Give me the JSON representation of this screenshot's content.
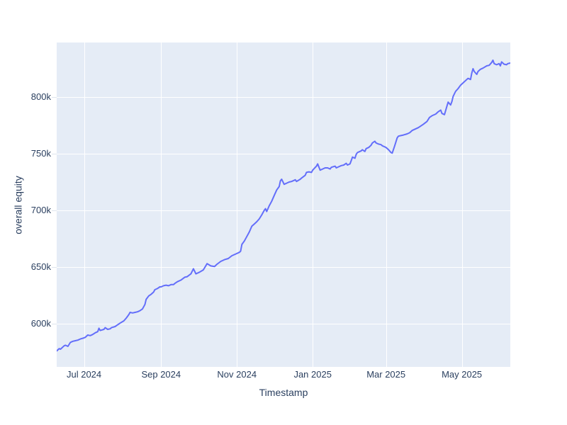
{
  "chart_data": {
    "type": "line",
    "title": "",
    "xlabel": "Timestamp",
    "ylabel": "overall equity",
    "grid": "on",
    "legend_position": "none",
    "xlim": [
      "2024-06-09",
      "2025-06-09"
    ],
    "ylim": [
      561875,
      848125
    ],
    "x_ticks": [
      {
        "date": "2024-07-01",
        "label": "Jul 2024"
      },
      {
        "date": "2024-09-01",
        "label": "Sep 2024"
      },
      {
        "date": "2024-11-01",
        "label": "Nov 2024"
      },
      {
        "date": "2025-01-01",
        "label": "Jan 2025"
      },
      {
        "date": "2025-03-01",
        "label": "Mar 2025"
      },
      {
        "date": "2025-05-01",
        "label": "May 2025"
      }
    ],
    "y_ticks": [
      {
        "value": 600000,
        "label": "600k"
      },
      {
        "value": 650000,
        "label": "650k"
      },
      {
        "value": 700000,
        "label": "700k"
      },
      {
        "value": 750000,
        "label": "750k"
      },
      {
        "value": 800000,
        "label": "800k"
      }
    ],
    "colors": {
      "line": "#636efa",
      "plot_bg": "#e5ecf6",
      "grid": "#ffffff",
      "text": "#2a3f5f",
      "outer_bg": "#ffffff"
    },
    "series": [
      {
        "name": "overall equity",
        "points": [
          [
            "2024-06-09",
            576000
          ],
          [
            "2024-06-11",
            578000
          ],
          [
            "2024-06-12",
            577500
          ],
          [
            "2024-06-15",
            580500
          ],
          [
            "2024-06-16",
            581000
          ],
          [
            "2024-06-18",
            580000
          ],
          [
            "2024-06-20",
            583500
          ],
          [
            "2024-06-22",
            584500
          ],
          [
            "2024-06-24",
            585000
          ],
          [
            "2024-06-26",
            585500
          ],
          [
            "2024-06-28",
            586500
          ],
          [
            "2024-07-01",
            587500
          ],
          [
            "2024-07-02",
            588000
          ],
          [
            "2024-07-04",
            590000
          ],
          [
            "2024-07-06",
            589500
          ],
          [
            "2024-07-08",
            590500
          ],
          [
            "2024-07-10",
            592000
          ],
          [
            "2024-07-12",
            593000
          ],
          [
            "2024-07-13",
            596000
          ],
          [
            "2024-07-14",
            594000
          ],
          [
            "2024-07-17",
            595000
          ],
          [
            "2024-07-18",
            596500
          ],
          [
            "2024-07-20",
            595000
          ],
          [
            "2024-07-22",
            595500
          ],
          [
            "2024-07-23",
            596500
          ],
          [
            "2024-07-26",
            597500
          ],
          [
            "2024-07-28",
            599000
          ],
          [
            "2024-07-30",
            600500
          ],
          [
            "2024-08-02",
            602500
          ],
          [
            "2024-08-04",
            605000
          ],
          [
            "2024-08-06",
            608000
          ],
          [
            "2024-08-07",
            610000
          ],
          [
            "2024-08-09",
            609500
          ],
          [
            "2024-08-11",
            610000
          ],
          [
            "2024-08-13",
            610500
          ],
          [
            "2024-08-15",
            611500
          ],
          [
            "2024-08-17",
            613000
          ],
          [
            "2024-08-19",
            617000
          ],
          [
            "2024-08-20",
            621500
          ],
          [
            "2024-08-22",
            624500
          ],
          [
            "2024-08-24",
            626000
          ],
          [
            "2024-08-26",
            628000
          ],
          [
            "2024-08-27",
            630000
          ],
          [
            "2024-08-29",
            631000
          ],
          [
            "2024-08-31",
            632500
          ],
          [
            "2024-09-01",
            632500
          ],
          [
            "2024-09-03",
            633500
          ],
          [
            "2024-09-05",
            634000
          ],
          [
            "2024-09-07",
            633500
          ],
          [
            "2024-09-09",
            634500
          ],
          [
            "2024-09-11",
            634500
          ],
          [
            "2024-09-12",
            635500
          ],
          [
            "2024-09-14",
            637000
          ],
          [
            "2024-09-17",
            638500
          ],
          [
            "2024-09-20",
            641000
          ],
          [
            "2024-09-22",
            641500
          ],
          [
            "2024-09-25",
            644000
          ],
          [
            "2024-09-27",
            648500
          ],
          [
            "2024-09-29",
            644000
          ],
          [
            "2024-10-02",
            645500
          ],
          [
            "2024-10-05",
            647500
          ],
          [
            "2024-10-08",
            653000
          ],
          [
            "2024-10-11",
            651000
          ],
          [
            "2024-10-14",
            650500
          ],
          [
            "2024-10-16",
            652500
          ],
          [
            "2024-10-19",
            655000
          ],
          [
            "2024-10-22",
            656500
          ],
          [
            "2024-10-25",
            657500
          ],
          [
            "2024-10-28",
            660000
          ],
          [
            "2024-10-31",
            661500
          ],
          [
            "2024-11-03",
            663000
          ],
          [
            "2024-11-04",
            664000
          ],
          [
            "2024-11-05",
            670000
          ],
          [
            "2024-11-07",
            673000
          ],
          [
            "2024-11-09",
            677000
          ],
          [
            "2024-11-11",
            681000
          ],
          [
            "2024-11-13",
            686000
          ],
          [
            "2024-11-15",
            688000
          ],
          [
            "2024-11-17",
            690000
          ],
          [
            "2024-11-19",
            692500
          ],
          [
            "2024-11-21",
            696000
          ],
          [
            "2024-11-23",
            700000
          ],
          [
            "2024-11-24",
            701500
          ],
          [
            "2024-11-25",
            699000
          ],
          [
            "2024-11-27",
            704000
          ],
          [
            "2024-11-29",
            708000
          ],
          [
            "2024-12-01",
            713000
          ],
          [
            "2024-12-03",
            718000
          ],
          [
            "2024-12-05",
            721000
          ],
          [
            "2024-12-06",
            726000
          ],
          [
            "2024-12-07",
            727500
          ],
          [
            "2024-12-09",
            723000
          ],
          [
            "2024-12-11",
            724000
          ],
          [
            "2024-12-13",
            725000
          ],
          [
            "2024-12-15",
            725500
          ],
          [
            "2024-12-18",
            727000
          ],
          [
            "2024-12-19",
            725500
          ],
          [
            "2024-12-22",
            727500
          ],
          [
            "2024-12-23",
            728500
          ],
          [
            "2024-12-26",
            731000
          ],
          [
            "2024-12-27",
            733500
          ],
          [
            "2024-12-29",
            734000
          ],
          [
            "2024-12-31",
            733500
          ],
          [
            "2025-01-01",
            735500
          ],
          [
            "2025-01-04",
            739000
          ],
          [
            "2025-01-05",
            741000
          ],
          [
            "2025-01-07",
            735500
          ],
          [
            "2025-01-09",
            736500
          ],
          [
            "2025-01-11",
            737500
          ],
          [
            "2025-01-13",
            737500
          ],
          [
            "2025-01-15",
            736500
          ],
          [
            "2025-01-16",
            738000
          ],
          [
            "2025-01-19",
            739000
          ],
          [
            "2025-01-20",
            737500
          ],
          [
            "2025-01-22",
            738500
          ],
          [
            "2025-01-24",
            739500
          ],
          [
            "2025-01-26",
            740000
          ],
          [
            "2025-01-28",
            741500
          ],
          [
            "2025-01-29",
            740000
          ],
          [
            "2025-01-31",
            741000
          ],
          [
            "2025-02-01",
            744000
          ],
          [
            "2025-02-02",
            747000
          ],
          [
            "2025-02-04",
            746000
          ],
          [
            "2025-02-05",
            749500
          ],
          [
            "2025-02-06",
            751000
          ],
          [
            "2025-02-08",
            752000
          ],
          [
            "2025-02-09",
            752500
          ],
          [
            "2025-02-10",
            753500
          ],
          [
            "2025-02-12",
            752000
          ],
          [
            "2025-02-13",
            754500
          ],
          [
            "2025-02-15",
            755500
          ],
          [
            "2025-02-17",
            757500
          ],
          [
            "2025-02-18",
            759500
          ],
          [
            "2025-02-20",
            761000
          ],
          [
            "2025-02-21",
            759500
          ],
          [
            "2025-02-23",
            758500
          ],
          [
            "2025-02-25",
            758000
          ],
          [
            "2025-02-26",
            757000
          ],
          [
            "2025-02-28",
            756000
          ],
          [
            "2025-03-01",
            755500
          ],
          [
            "2025-03-03",
            753500
          ],
          [
            "2025-03-05",
            751000
          ],
          [
            "2025-03-06",
            750500
          ],
          [
            "2025-03-08",
            757000
          ],
          [
            "2025-03-10",
            764000
          ],
          [
            "2025-03-11",
            765500
          ],
          [
            "2025-03-13",
            766000
          ],
          [
            "2025-03-15",
            766500
          ],
          [
            "2025-03-18",
            767500
          ],
          [
            "2025-03-20",
            768500
          ],
          [
            "2025-03-22",
            770500
          ],
          [
            "2025-03-25",
            772000
          ],
          [
            "2025-03-27",
            773000
          ],
          [
            "2025-03-29",
            774500
          ],
          [
            "2025-03-31",
            776000
          ],
          [
            "2025-04-03",
            778500
          ],
          [
            "2025-04-05",
            782000
          ],
          [
            "2025-04-07",
            783500
          ],
          [
            "2025-04-10",
            785000
          ],
          [
            "2025-04-12",
            787000
          ],
          [
            "2025-04-14",
            788500
          ],
          [
            "2025-04-15",
            785500
          ],
          [
            "2025-04-17",
            784500
          ],
          [
            "2025-04-19",
            792000
          ],
          [
            "2025-04-20",
            795500
          ],
          [
            "2025-04-22",
            793000
          ],
          [
            "2025-04-23",
            796000
          ],
          [
            "2025-04-24",
            800500
          ],
          [
            "2025-04-26",
            805000
          ],
          [
            "2025-04-28",
            807500
          ],
          [
            "2025-04-30",
            810500
          ],
          [
            "2025-05-02",
            812500
          ],
          [
            "2025-05-05",
            815500
          ],
          [
            "2025-05-06",
            816500
          ],
          [
            "2025-05-08",
            815500
          ],
          [
            "2025-05-09",
            821000
          ],
          [
            "2025-05-10",
            825000
          ],
          [
            "2025-05-11",
            822500
          ],
          [
            "2025-05-13",
            820000
          ],
          [
            "2025-05-14",
            822500
          ],
          [
            "2025-05-16",
            824500
          ],
          [
            "2025-05-18",
            825500
          ],
          [
            "2025-05-21",
            827500
          ],
          [
            "2025-05-23",
            828000
          ],
          [
            "2025-05-25",
            830500
          ],
          [
            "2025-05-26",
            832500
          ],
          [
            "2025-05-27",
            829500
          ],
          [
            "2025-05-29",
            828500
          ],
          [
            "2025-05-31",
            829500
          ],
          [
            "2025-06-01",
            827500
          ],
          [
            "2025-06-02",
            831000
          ],
          [
            "2025-06-04",
            829000
          ],
          [
            "2025-06-06",
            828500
          ],
          [
            "2025-06-07",
            829500
          ],
          [
            "2025-06-09",
            830000
          ]
        ]
      }
    ]
  }
}
